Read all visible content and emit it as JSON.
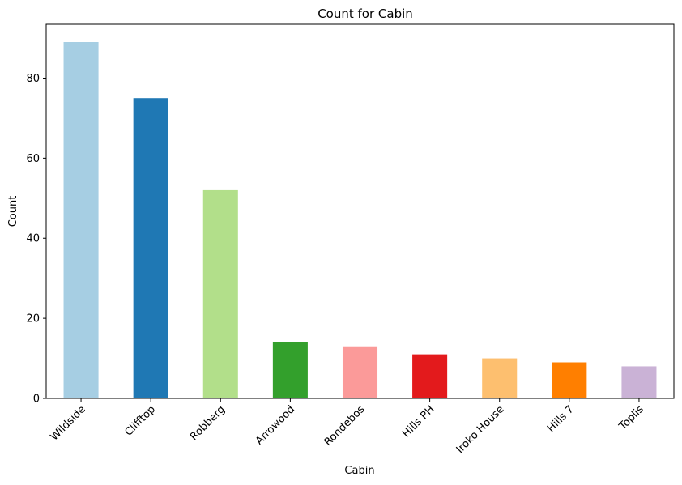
{
  "chart_data": {
    "type": "bar",
    "title": "Count for Cabin",
    "xlabel": "Cabin",
    "ylabel": "Count",
    "categories": [
      "Wildside",
      "Clifftop",
      "Robberg",
      "Arrowood",
      "Rondebos",
      "Hills PH",
      "Iroko House",
      "Hills 7",
      "Toplis"
    ],
    "values": [
      89,
      75,
      52,
      14,
      13,
      11,
      10,
      9,
      8
    ],
    "colors": [
      "#a6cee3",
      "#1f78b4",
      "#b2df8a",
      "#33a02c",
      "#fb9a99",
      "#e31a1c",
      "#fdbf6f",
      "#ff7f00",
      "#cab2d6"
    ],
    "ylim": [
      0,
      93.45
    ],
    "yticks": [
      0,
      20,
      40,
      60,
      80
    ],
    "grid": false,
    "legend": "none"
  }
}
